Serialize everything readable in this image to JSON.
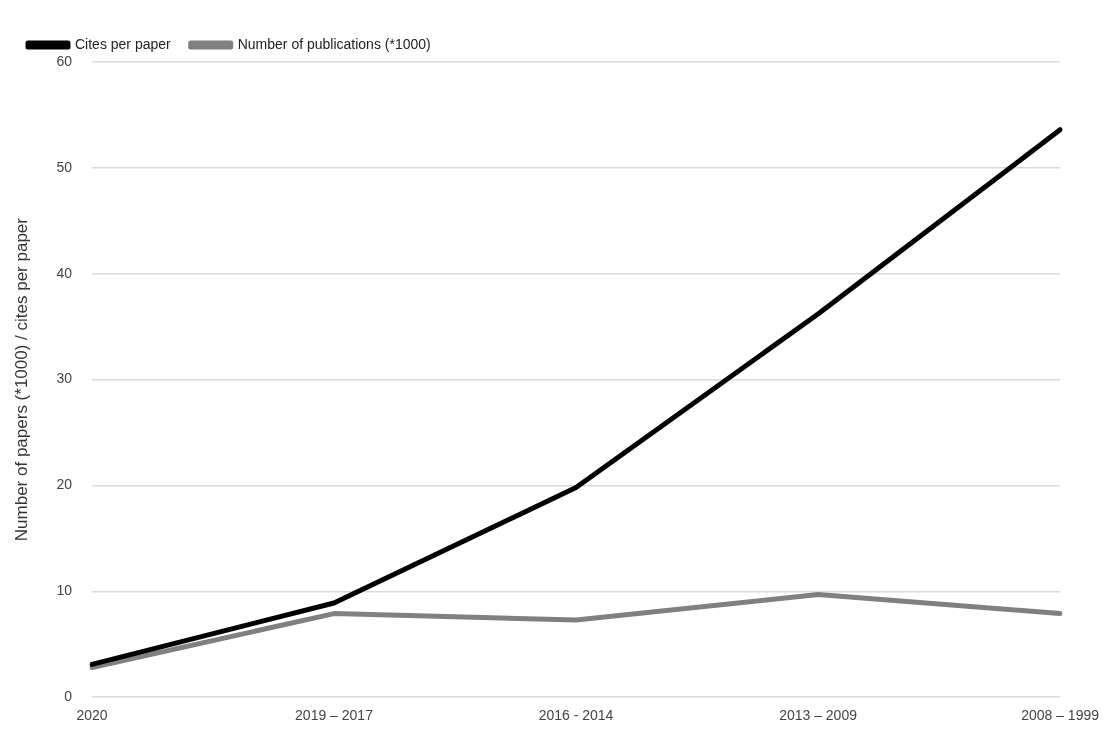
{
  "chart_data": {
    "type": "line",
    "ylabel": "Number of papers (*1000) / cites per paper",
    "categories": [
      "2020",
      "2019 – 2017",
      "2016 - 2014",
      "2013 – 2009",
      "2008 – 1999"
    ],
    "series": [
      {
        "name": "Cites per paper",
        "color": "#000000",
        "values": [
          3.1,
          8.9,
          19.8,
          36.2,
          53.6
        ]
      },
      {
        "name": "Number of publications (*1000)",
        "color": "#808080",
        "values": [
          2.8,
          7.9,
          7.3,
          9.7,
          7.9
        ]
      }
    ],
    "ylim": [
      0,
      60
    ],
    "yticks": [
      0,
      10,
      20,
      30,
      40,
      50,
      60
    ],
    "grid": "y",
    "legend": "top left",
    "marker": "none",
    "line_style": "solid"
  }
}
